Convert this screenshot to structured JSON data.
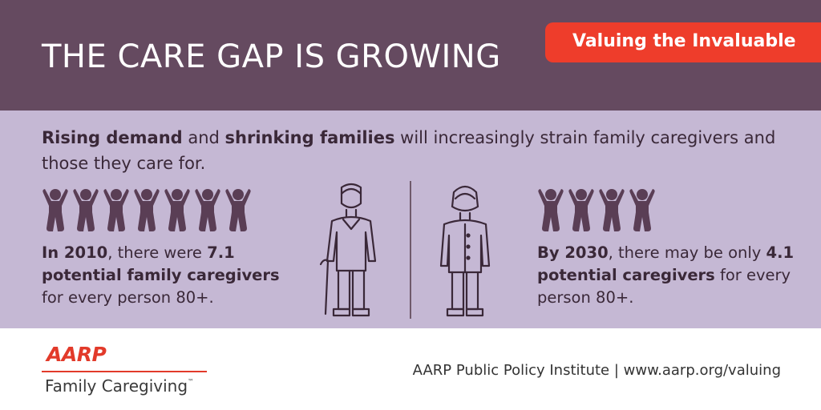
{
  "header": {
    "title": "THE CARE GAP IS GROWING",
    "badge": "Valuing the Invaluable"
  },
  "intro": {
    "bold1": "Rising demand",
    "text1": " and ",
    "bold2": "shrinking families",
    "text2": " will increasingly strain family caregivers and those they care for."
  },
  "stat_2010": {
    "bold_year": "In 2010",
    "text_a": ", there were ",
    "bold_value": "7.1 potential family caregivers",
    "text_b": " for every person 80+.",
    "figure_count": 7
  },
  "stat_2030": {
    "bold_year": "By 2030",
    "text_a": ", there may be only ",
    "bold_value": "4.1 potential caregivers",
    "text_b": " for every person 80+.",
    "figure_count": 4
  },
  "footer": {
    "logo_text": "AARP",
    "logo_subtitle": "Family Caregiving",
    "trademark": "™",
    "credit": "AARP Public Policy Institute  |  www.aarp.org/valuing"
  },
  "colors": {
    "header_bg": "#654a60",
    "badge_bg": "#ee3d2b",
    "mid_bg": "#c5b8d4",
    "figure": "#5a3e55",
    "aarp_red": "#e23a2a"
  },
  "icons": [
    "child-figure-icon",
    "elderly-man-with-cane-icon",
    "elderly-woman-icon"
  ]
}
